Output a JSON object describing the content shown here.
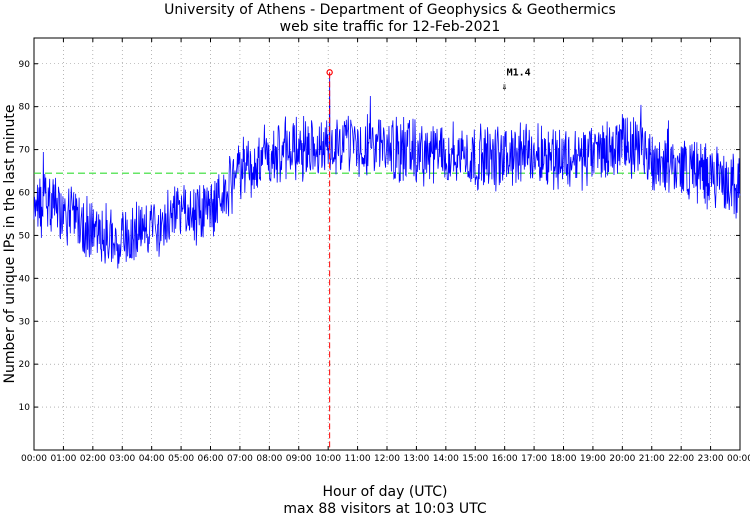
{
  "chart_data": {
    "type": "line",
    "title": "University of Athens - Department of Geophysics & Geothermics",
    "subtitle": "web site traffic for 12-Feb-2021",
    "xlabel": "Hour of day (UTC)",
    "xlabel2": "max 88 visitors at 10:03 UTC",
    "ylabel": "Number of unique IPs in the last minute",
    "x_ticks": [
      "00:00",
      "01:00",
      "02:00",
      "03:00",
      "04:00",
      "05:00",
      "06:00",
      "07:00",
      "08:00",
      "09:00",
      "10:00",
      "11:00",
      "12:00",
      "13:00",
      "14:00",
      "15:00",
      "16:00",
      "17:00",
      "18:00",
      "19:00",
      "20:00",
      "21:00",
      "22:00",
      "23:00",
      "00:00"
    ],
    "y_ticks": [
      "10",
      "20",
      "30",
      "40",
      "50",
      "60",
      "70",
      "80",
      "90"
    ],
    "xlim": [
      0,
      24
    ],
    "ylim": [
      0,
      96
    ],
    "grid": true,
    "mean_value": 64.5,
    "max": {
      "value": 88,
      "time": 10.05,
      "label": "10:03"
    },
    "annotation": {
      "text": "M1.4",
      "time": 16.0,
      "value": 84
    },
    "colors": {
      "series": "#0000ff",
      "mean": "#33dd33",
      "max_marker": "#ff0000"
    },
    "series_hourly": [
      {
        "name": "",
        "x": [
          0,
          0.5,
          1,
          1.5,
          2,
          2.5,
          3,
          3.5,
          4,
          4.5,
          5,
          5.5,
          6,
          6.5,
          7,
          7.5,
          8,
          8.5,
          9,
          9.5,
          10,
          10.5,
          11,
          11.5,
          12,
          12.5,
          13,
          13.5,
          14,
          14.5,
          15,
          15.5,
          16,
          16.5,
          17,
          17.5,
          18,
          18.5,
          19,
          19.5,
          20,
          20.5,
          21,
          21.5,
          22,
          22.5,
          23,
          23.5,
          24
        ],
        "values": [
          58,
          57,
          55,
          53,
          51,
          50,
          50,
          51,
          52,
          53,
          54,
          55,
          57,
          60,
          64,
          67,
          69,
          70,
          70,
          70,
          71,
          71,
          71,
          71,
          70,
          70,
          69,
          69,
          69,
          69,
          68,
          68,
          68,
          69,
          69,
          69,
          68,
          68,
          69,
          70,
          71,
          70,
          68,
          67,
          66,
          65,
          64,
          62,
          61
        ]
      }
    ]
  }
}
